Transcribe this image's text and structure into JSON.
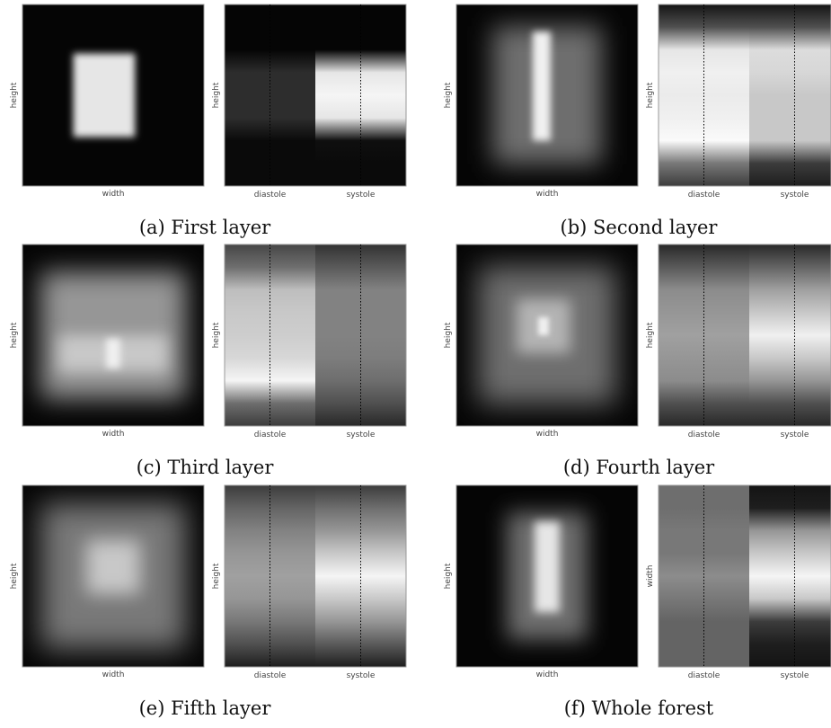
{
  "panels": [
    {
      "caption": "(a) First layer",
      "left": {
        "xlabel": "width",
        "ylabel": "height"
      },
      "right": {
        "ylabel": "height",
        "xticklabels": [
          "diastole",
          "systole"
        ]
      }
    },
    {
      "caption": "(b) Second layer",
      "left": {
        "xlabel": "width",
        "ylabel": "height"
      },
      "right": {
        "ylabel": "height",
        "xticklabels": [
          "diastole",
          "systole"
        ]
      }
    },
    {
      "caption": "(c) Third layer",
      "left": {
        "xlabel": "width",
        "ylabel": "height"
      },
      "right": {
        "ylabel": "height",
        "xticklabels": [
          "diastole",
          "systole"
        ]
      }
    },
    {
      "caption": "(d) Fourth layer",
      "left": {
        "xlabel": "width",
        "ylabel": "height"
      },
      "right": {
        "ylabel": "height",
        "xticklabels": [
          "diastole",
          "systole"
        ]
      }
    },
    {
      "caption": "(e) Fifth layer",
      "left": {
        "xlabel": "width",
        "ylabel": "height"
      },
      "right": {
        "ylabel": "height",
        "xticklabels": [
          "diastole",
          "systole"
        ]
      }
    },
    {
      "caption": "(f) Whole forest",
      "left": {
        "xlabel": "width",
        "ylabel": "height"
      },
      "right": {
        "ylabel": "width",
        "xticklabels": [
          "diastole",
          "systole"
        ]
      }
    }
  ]
}
